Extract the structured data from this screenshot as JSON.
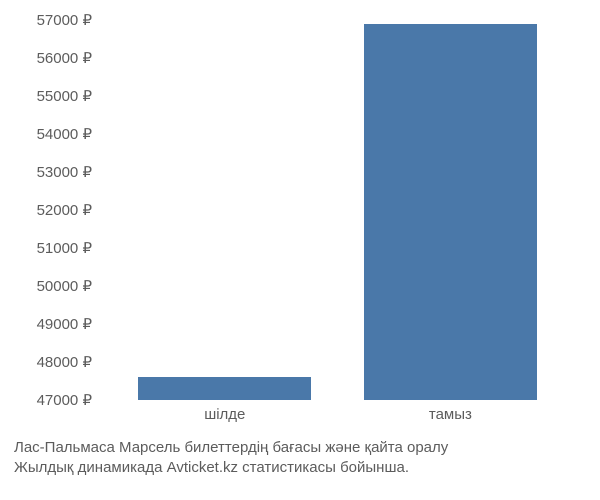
{
  "chart": {
    "type": "bar",
    "categories": [
      "шілде",
      "тамыз"
    ],
    "values": [
      47600,
      56900
    ],
    "bar_color": "#4a78a9",
    "bar_width_pct": 36,
    "bar_left_pct": [
      8,
      55
    ],
    "y_min": 47000,
    "y_max": 57000,
    "y_tick_step": 1000,
    "y_ticks": [
      47000,
      48000,
      49000,
      50000,
      51000,
      52000,
      53000,
      54000,
      55000,
      56000,
      57000
    ],
    "y_tick_suffix": " ₽",
    "tick_color": "#5c5c5c",
    "tick_fontsize": 15,
    "background_color": "#ffffff"
  },
  "caption": {
    "line1": "Лас-Пальмаса Марсель билеттердің бағасы және қайта оралу",
    "line2": "Жылдық динамикада Avticket.kz статистикасы бойынша."
  }
}
